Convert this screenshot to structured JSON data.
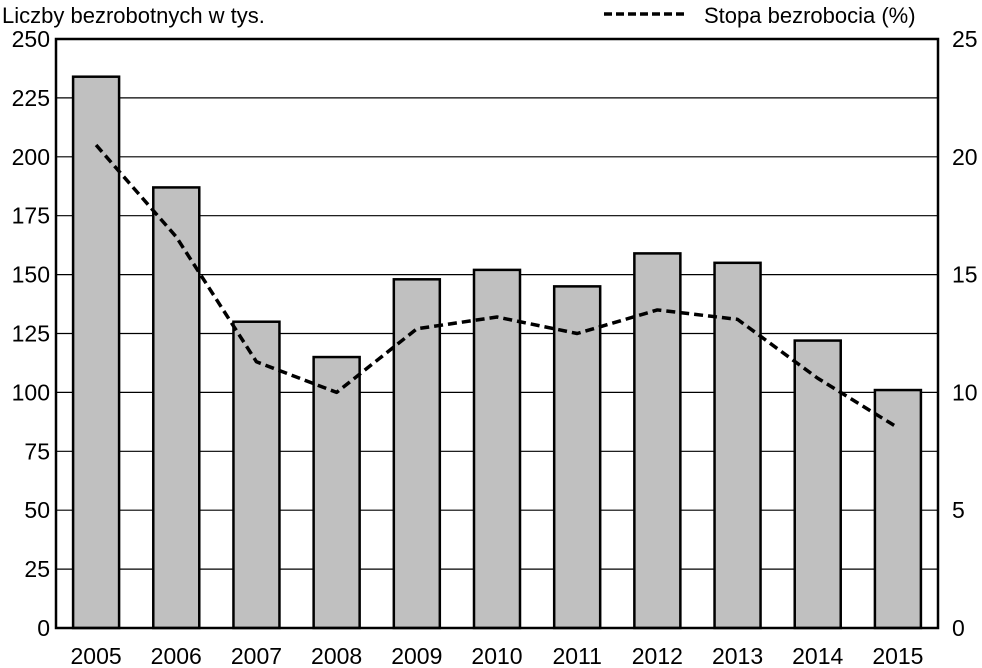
{
  "chart_data": {
    "type": "bar",
    "title": "",
    "left_axis_label": "Liczby bezrobotnych w tys.",
    "line_legend_label": "Stopa bezrobocia (%)",
    "categories": [
      "2005",
      "2006",
      "2007",
      "2008",
      "2009",
      "2010",
      "2011",
      "2012",
      "2013",
      "2014",
      "2015"
    ],
    "series": [
      {
        "name": "Liczby bezrobotnych w tys.",
        "type": "bar",
        "axis": "left",
        "values": [
          234,
          187,
          130,
          115,
          148,
          152,
          145,
          159,
          155,
          122,
          101
        ]
      },
      {
        "name": "Stopa bezrobocia (%)",
        "type": "line",
        "style": "dashed",
        "axis": "right",
        "values": [
          20.5,
          16.6,
          11.3,
          10.0,
          12.7,
          13.2,
          12.5,
          13.5,
          13.1,
          10.6,
          8.5
        ]
      }
    ],
    "ylim_left": [
      0,
      250
    ],
    "ylim_right": [
      0,
      25
    ],
    "yticks_left": [
      "0",
      "25",
      "50",
      "75",
      "100",
      "125",
      "150",
      "175",
      "200",
      "225",
      "250"
    ],
    "yticks_right": [
      "0",
      "5",
      "10",
      "15",
      "20",
      "25"
    ],
    "grid": true,
    "legend_position": "top-right",
    "colors": {
      "bar_fill": "#c0c0c0",
      "bar_stroke": "#000000",
      "line": "#000000",
      "grid": "#000000"
    }
  }
}
